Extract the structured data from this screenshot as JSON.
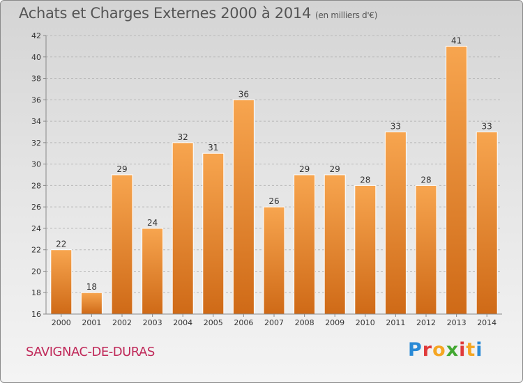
{
  "header": {
    "title": "Achats et Charges Externes 2000 à 2014",
    "unit": "(en milliers d'€)"
  },
  "footer": {
    "place": "SAVIGNAC-DE-DURAS",
    "logo_letters": [
      {
        "char": "P",
        "color": "#2a8ad6"
      },
      {
        "char": "r",
        "color": "#e03a3a"
      },
      {
        "char": "o",
        "color": "#f5a623"
      },
      {
        "char": "x",
        "color": "#43a832"
      },
      {
        "char": "i",
        "color": "#e03a3a"
      },
      {
        "char": "t",
        "color": "#f5a623"
      },
      {
        "char": "i",
        "color": "#2a8ad6"
      }
    ]
  },
  "chart_data": {
    "type": "bar",
    "title": "Achats et Charges Externes 2000 à 2014",
    "subtitle": "(en milliers d'€)",
    "categories": [
      "2000",
      "2001",
      "2002",
      "2003",
      "2004",
      "2005",
      "2006",
      "2007",
      "2008",
      "2009",
      "2010",
      "2011",
      "2012",
      "2013",
      "2014"
    ],
    "values": [
      22,
      18,
      29,
      24,
      32,
      31,
      36,
      26,
      29,
      29,
      28,
      33,
      28,
      41,
      33
    ],
    "ylim": [
      16,
      42
    ],
    "yticks": [
      16,
      18,
      20,
      22,
      24,
      26,
      28,
      30,
      32,
      34,
      36,
      38,
      40,
      42
    ],
    "grid": true,
    "xlabel": "",
    "ylabel": "",
    "bar_color_top": "#f7a54f",
    "bar_color_bottom": "#cf6a17"
  }
}
